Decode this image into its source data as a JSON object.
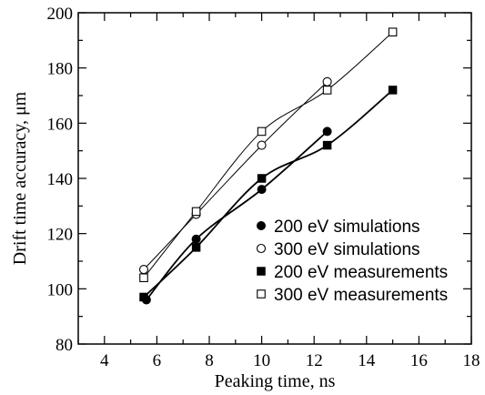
{
  "chart_data": {
    "type": "line",
    "title": "",
    "xlabel": "Peaking time, ns",
    "ylabel": "Drift time accuracy, μm",
    "xlim": [
      3,
      18
    ],
    "ylim": [
      80,
      200
    ],
    "x_ticks": [
      4,
      6,
      8,
      10,
      12,
      14,
      16,
      18
    ],
    "y_ticks": [
      80,
      100,
      120,
      140,
      160,
      180,
      200
    ],
    "grid": false,
    "legend_position": "bottom-right",
    "series": [
      {
        "name": "200 eV simulations",
        "marker": "filled-circle",
        "color": "#000000",
        "x": [
          5.6,
          7.5,
          10,
          12.5
        ],
        "y": [
          96,
          118,
          136,
          157
        ]
      },
      {
        "name": "300 eV simulations",
        "marker": "open-circle",
        "color": "#000000",
        "x": [
          5.5,
          7.5,
          10,
          12.5
        ],
        "y": [
          107,
          127,
          152,
          175
        ]
      },
      {
        "name": "200 eV measurements",
        "marker": "filled-square",
        "color": "#000000",
        "x": [
          5.5,
          7.5,
          10,
          12.5,
          15
        ],
        "y": [
          97,
          115,
          140,
          152,
          172
        ]
      },
      {
        "name": "300 eV measurements",
        "marker": "open-square",
        "color": "#000000",
        "x": [
          5.5,
          7.5,
          10,
          12.5,
          15
        ],
        "y": [
          104,
          128,
          157,
          172,
          193
        ]
      }
    ]
  }
}
